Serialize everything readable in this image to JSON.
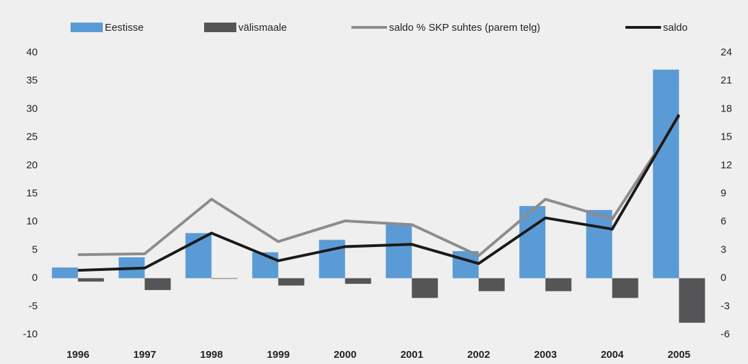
{
  "chart_data": {
    "type": "bar",
    "categories": [
      "1996",
      "1997",
      "1998",
      "1999",
      "2000",
      "2001",
      "2002",
      "2003",
      "2004",
      "2005"
    ],
    "series": [
      {
        "name": "Eestisse",
        "color": "#5b9bd5",
        "kind": "bar",
        "values": [
          1.9,
          3.7,
          8.0,
          4.6,
          6.8,
          9.5,
          4.8,
          12.8,
          12.1,
          37.0
        ]
      },
      {
        "name": "välismaale",
        "color": "#555558",
        "kind": "bar",
        "values": [
          -0.6,
          -2.1,
          -0.1,
          -1.3,
          -1.0,
          -3.5,
          -2.3,
          -2.3,
          -3.5,
          -7.9
        ]
      },
      {
        "name": "saldo % SKP suhtes (parem telg)",
        "color": "#8c8c8c",
        "kind": "line",
        "axis": "y2",
        "values": [
          2.5,
          2.6,
          8.4,
          3.9,
          6.1,
          5.7,
          2.4,
          8.4,
          6.3,
          17.2
        ]
      },
      {
        "name": "saldo",
        "color": "#1a1a1a",
        "kind": "line",
        "values": [
          1.4,
          1.8,
          8.0,
          3.1,
          5.6,
          6.0,
          2.6,
          10.7,
          8.7,
          29.0
        ]
      }
    ],
    "ylim": [
      -10,
      40
    ],
    "yticks": [
      -10,
      -5,
      0,
      5,
      10,
      15,
      20,
      25,
      30,
      35,
      40
    ],
    "y2lim": [
      -6,
      24
    ],
    "y2ticks": [
      -6,
      -3,
      0,
      3,
      6,
      9,
      12,
      15,
      18,
      21,
      24
    ],
    "legend": "top"
  }
}
